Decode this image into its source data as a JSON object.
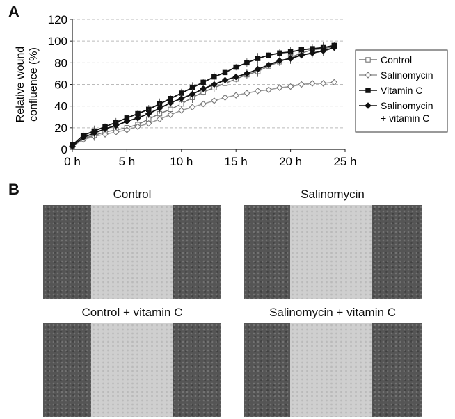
{
  "panels": {
    "a_label": "A",
    "b_label": "B"
  },
  "chart_data": {
    "type": "line",
    "ylabel_lines": [
      "Relative wound",
      "confluence (%)"
    ],
    "xlabel": "",
    "ylim": [
      0,
      120
    ],
    "xlim": [
      0,
      25
    ],
    "yticks": [
      0,
      20,
      40,
      60,
      80,
      100,
      120
    ],
    "xticks": [
      0,
      5,
      10,
      15,
      20,
      25
    ],
    "xtick_labels": [
      "0 h",
      "5 h",
      "10 h",
      "15 h",
      "20 h",
      "25 h"
    ],
    "grid": "horizontal dashed",
    "legend_position": "right",
    "x": [
      0,
      1,
      2,
      3,
      4,
      5,
      6,
      7,
      8,
      9,
      10,
      11,
      12,
      13,
      14,
      15,
      16,
      17,
      18,
      19,
      20,
      21,
      22,
      23,
      24
    ],
    "series": [
      {
        "name": "Control",
        "marker": "open-square",
        "values": [
          3,
          10,
          13,
          16,
          18,
          20,
          23,
          28,
          33,
          37,
          42,
          48,
          53,
          57,
          61,
          65,
          69,
          72,
          77,
          81,
          85,
          89,
          92,
          93,
          95
        ]
      },
      {
        "name": "Salinomycin",
        "marker": "open-diamond",
        "values": [
          3,
          9,
          12,
          14,
          16,
          18,
          21,
          24,
          28,
          32,
          36,
          39,
          42,
          45,
          48,
          50,
          52,
          54,
          55,
          57,
          58,
          60,
          61,
          61,
          62
        ]
      },
      {
        "name": "Vitamin C",
        "marker": "filled-square",
        "values": [
          4,
          13,
          17,
          21,
          25,
          29,
          33,
          37,
          42,
          47,
          52,
          57,
          62,
          67,
          71,
          76,
          80,
          84,
          87,
          89,
          90,
          92,
          93,
          94,
          96
        ]
      },
      {
        "name": "Salinomycin\n+ vitamin C",
        "marker": "filled-diamond",
        "legend_lines": [
          "Salinomycin",
          "+ vitamin C"
        ],
        "values": [
          3,
          11,
          15,
          19,
          22,
          26,
          29,
          33,
          38,
          43,
          47,
          51,
          56,
          60,
          64,
          67,
          70,
          74,
          78,
          82,
          84,
          87,
          89,
          91,
          94
        ]
      }
    ]
  },
  "micrographs": [
    {
      "caption": "Control",
      "wound_left": 0.27,
      "wound_right": 0.73
    },
    {
      "caption": "Salinomycin",
      "wound_left": 0.26,
      "wound_right": 0.72
    },
    {
      "caption": "Control + vitamin C",
      "wound_left": 0.27,
      "wound_right": 0.73
    },
    {
      "caption": "Salinomycin + vitamin C",
      "wound_left": 0.26,
      "wound_right": 0.72
    }
  ]
}
